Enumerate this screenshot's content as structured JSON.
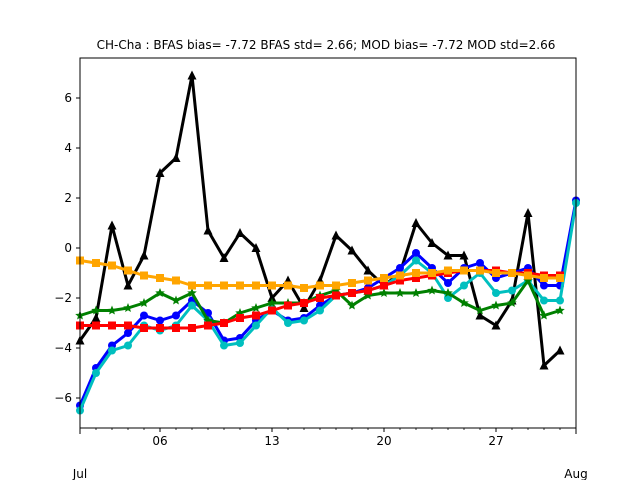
{
  "chart_data": {
    "type": "line",
    "title": "CH-Cha   : BFAS bias= -7.72 BFAS std= 2.66; MOD bias= -7.72 MOD std=2.66",
    "xlabel": "",
    "ylabel": "",
    "xlim": [
      1,
      32
    ],
    "ylim": [
      -7.2,
      7.6
    ],
    "x_ticks": [
      {
        "value": 6,
        "label": "06"
      },
      {
        "value": 13,
        "label": "13"
      },
      {
        "value": 20,
        "label": "20"
      },
      {
        "value": 27,
        "label": "27"
      }
    ],
    "x_month_labels": [
      {
        "value": 1,
        "label": "Jul"
      },
      {
        "value": 32,
        "label": "Aug"
      }
    ],
    "y_ticks": [
      -6,
      -4,
      -2,
      0,
      2,
      4,
      6
    ],
    "grid": false,
    "legend": "none",
    "series": [
      {
        "marker": "triangle",
        "color": "#000000",
        "x": [
          1,
          2,
          3,
          4,
          5,
          6,
          7,
          8,
          9,
          10,
          11,
          12,
          13,
          14,
          15,
          16,
          17,
          18,
          19,
          20,
          21,
          22,
          23,
          24,
          25,
          26,
          27,
          28,
          29,
          30,
          31
        ],
        "values": [
          -3.7,
          -2.8,
          0.9,
          -1.5,
          -0.3,
          3.0,
          3.6,
          6.9,
          0.7,
          -0.4,
          0.6,
          0.0,
          -2.0,
          -1.3,
          -2.4,
          -1.3,
          0.5,
          -0.1,
          -0.9,
          -1.5,
          -1.0,
          1.0,
          0.2,
          -0.3,
          -0.3,
          -2.7,
          -3.1,
          -2.1,
          1.4,
          -4.7,
          -4.1
        ]
      },
      {
        "marker": "circle",
        "color": "#0000ff",
        "x": [
          1,
          2,
          3,
          4,
          5,
          6,
          7,
          8,
          9,
          10,
          11,
          12,
          13,
          14,
          15,
          16,
          17,
          18,
          19,
          20,
          21,
          22,
          23,
          24,
          25,
          26,
          27,
          28,
          29,
          30,
          31,
          32
        ],
        "values": [
          -6.3,
          -4.8,
          -3.9,
          -3.4,
          -2.7,
          -2.9,
          -2.7,
          -2.1,
          -2.6,
          -3.7,
          -3.6,
          -2.9,
          -2.5,
          -2.9,
          -2.8,
          -2.3,
          -1.9,
          -1.8,
          -1.6,
          -1.2,
          -0.8,
          -0.2,
          -0.8,
          -1.4,
          -0.8,
          -0.6,
          -1.2,
          -1.0,
          -0.8,
          -1.5,
          -1.5,
          1.9
        ]
      },
      {
        "marker": "circle",
        "color": "#00bfbf",
        "x": [
          1,
          2,
          3,
          4,
          5,
          6,
          7,
          8,
          9,
          10,
          11,
          12,
          13,
          14,
          15,
          16,
          17,
          18,
          19,
          20,
          21,
          22,
          23,
          24,
          25,
          26,
          27,
          28,
          29,
          30,
          31,
          32
        ],
        "values": [
          -6.5,
          -5.0,
          -4.1,
          -3.9,
          -3.1,
          -3.3,
          -3.1,
          -2.3,
          -2.9,
          -3.9,
          -3.8,
          -3.1,
          -2.4,
          -3.0,
          -2.9,
          -2.5,
          -1.9,
          -1.8,
          -1.7,
          -1.5,
          -1.1,
          -0.5,
          -1.0,
          -2.0,
          -1.5,
          -1.0,
          -1.8,
          -1.7,
          -1.3,
          -2.1,
          -2.1,
          1.8
        ]
      },
      {
        "marker": "star",
        "color": "#008000",
        "x": [
          1,
          2,
          3,
          4,
          5,
          6,
          7,
          8,
          9,
          10,
          11,
          12,
          13,
          14,
          15,
          16,
          17,
          18,
          19,
          20,
          21,
          22,
          23,
          24,
          25,
          26,
          27,
          28,
          29,
          30,
          31
        ],
        "values": [
          -2.7,
          -2.5,
          -2.5,
          -2.4,
          -2.2,
          -1.8,
          -2.1,
          -1.8,
          -2.9,
          -3.0,
          -2.6,
          -2.4,
          -2.2,
          -2.2,
          -2.2,
          -1.9,
          -1.7,
          -2.3,
          -1.9,
          -1.8,
          -1.8,
          -1.8,
          -1.7,
          -1.8,
          -2.2,
          -2.5,
          -2.3,
          -2.2,
          -1.3,
          -2.7,
          -2.5
        ]
      },
      {
        "marker": "square",
        "color": "#ff0000",
        "x": [
          1,
          2,
          3,
          4,
          5,
          6,
          7,
          8,
          9,
          10,
          11,
          12,
          13,
          14,
          15,
          16,
          17,
          18,
          19,
          20,
          21,
          22,
          23,
          24,
          25,
          26,
          27,
          28,
          29,
          30,
          31
        ],
        "values": [
          -3.1,
          -3.1,
          -3.1,
          -3.1,
          -3.2,
          -3.2,
          -3.2,
          -3.2,
          -3.1,
          -3.0,
          -2.8,
          -2.7,
          -2.5,
          -2.3,
          -2.2,
          -2.0,
          -1.9,
          -1.8,
          -1.7,
          -1.5,
          -1.3,
          -1.2,
          -1.1,
          -1.0,
          -0.9,
          -0.9,
          -0.9,
          -1.0,
          -1.0,
          -1.1,
          -1.1
        ]
      },
      {
        "marker": "square",
        "color": "#ffa500",
        "x": [
          1,
          2,
          3,
          4,
          5,
          6,
          7,
          8,
          9,
          10,
          11,
          12,
          13,
          14,
          15,
          16,
          17,
          18,
          19,
          20,
          21,
          22,
          23,
          24,
          25,
          26,
          27,
          28,
          29,
          30,
          31
        ],
        "values": [
          -0.5,
          -0.6,
          -0.7,
          -0.9,
          -1.1,
          -1.2,
          -1.3,
          -1.5,
          -1.5,
          -1.5,
          -1.5,
          -1.5,
          -1.5,
          -1.5,
          -1.6,
          -1.5,
          -1.5,
          -1.4,
          -1.3,
          -1.2,
          -1.1,
          -1.0,
          -1.0,
          -0.9,
          -0.9,
          -0.9,
          -1.0,
          -1.0,
          -1.1,
          -1.2,
          -1.2
        ]
      }
    ]
  }
}
